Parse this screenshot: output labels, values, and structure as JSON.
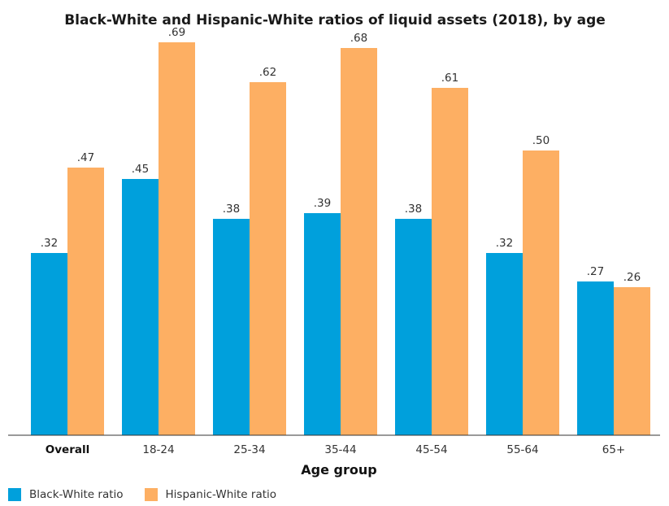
{
  "chart_data": {
    "type": "bar",
    "title": "Black-White and Hispanic-White ratios of liquid assets (2018), by age",
    "xlabel": "Age group",
    "ylabel": "",
    "ylim": [
      0,
      0.75
    ],
    "grid": false,
    "legend_position": "bottom-left",
    "categories": [
      "Overall",
      "18-24",
      "25-34",
      "35-44",
      "45-54",
      "55-64",
      "65+"
    ],
    "value_labels": {
      "black_white": [
        ".32",
        ".45",
        ".38",
        ".39",
        ".38",
        ".32",
        ".27"
      ],
      "hispanic_white": [
        ".47",
        ".69",
        ".62",
        ".68",
        ".61",
        ".50",
        ".26"
      ]
    },
    "series": [
      {
        "name": "Black-White ratio",
        "color": "#00A0DC",
        "values": [
          0.32,
          0.45,
          0.38,
          0.39,
          0.38,
          0.32,
          0.27
        ]
      },
      {
        "name": "Hispanic-White ratio",
        "color": "#FDAF63",
        "values": [
          0.47,
          0.69,
          0.62,
          0.68,
          0.61,
          0.5,
          0.26
        ]
      }
    ]
  }
}
